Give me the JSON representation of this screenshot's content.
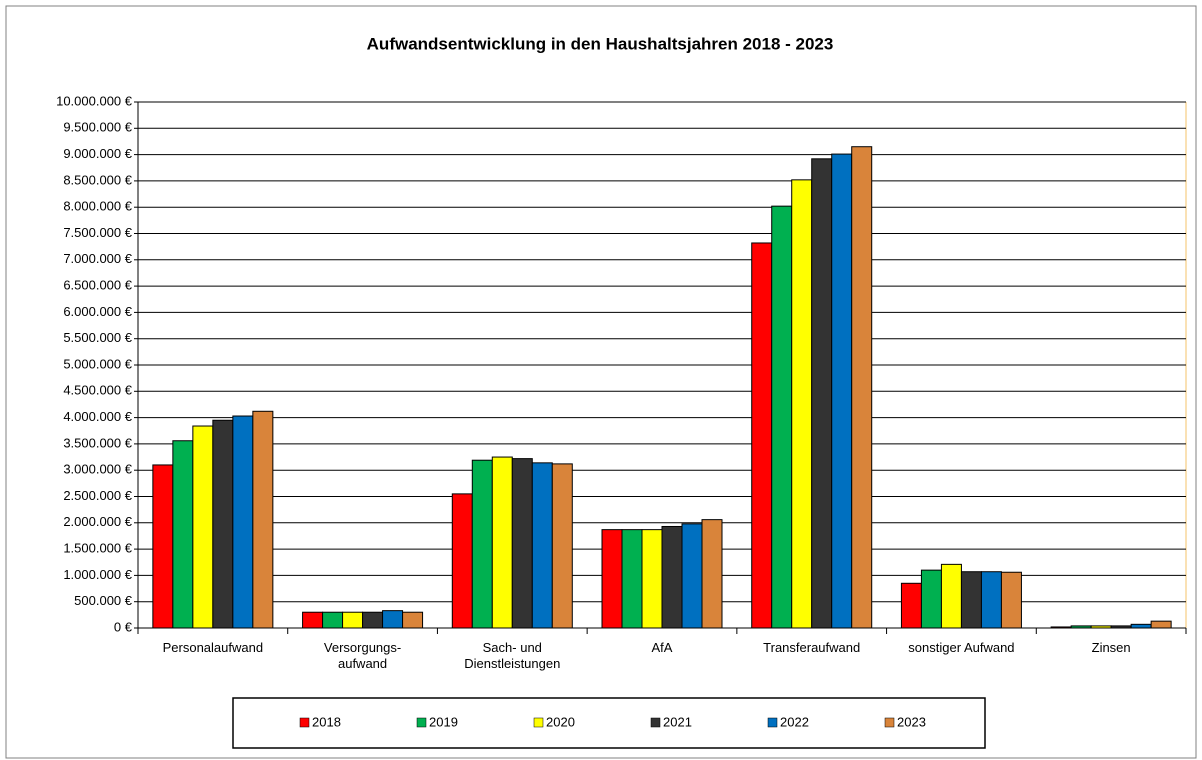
{
  "chart_data": {
    "type": "bar",
    "title": "Aufwandsentwicklung in den Haushaltsjahren 2018 - 2023",
    "categories": [
      "Personalaufwand",
      "Versorgungs-\naufwand",
      "Sach- und\nDienstleistungen",
      "AfA",
      "Transferaufwand",
      "sonstiger Aufwand",
      "Zinsen"
    ],
    "series": [
      {
        "name": "2018",
        "color": "#ff0000",
        "values": [
          3100000,
          300000,
          2550000,
          1870000,
          7320000,
          850000,
          20000
        ]
      },
      {
        "name": "2019",
        "color": "#00b050",
        "values": [
          3560000,
          300000,
          3190000,
          1870000,
          8020000,
          1100000,
          40000
        ]
      },
      {
        "name": "2020",
        "color": "#ffff00",
        "values": [
          3840000,
          300000,
          3250000,
          1870000,
          8520000,
          1210000,
          40000
        ]
      },
      {
        "name": "2021",
        "color": "#333333",
        "values": [
          3950000,
          300000,
          3220000,
          1930000,
          8920000,
          1070000,
          40000
        ]
      },
      {
        "name": "2022",
        "color": "#0070c0",
        "values": [
          4030000,
          330000,
          3140000,
          1980000,
          9010000,
          1070000,
          70000
        ]
      },
      {
        "name": "2023",
        "color": "#d9843a",
        "values": [
          4120000,
          300000,
          3120000,
          2060000,
          9150000,
          1060000,
          130000
        ]
      }
    ],
    "ylim": [
      0,
      10000000
    ],
    "yticks": [
      {
        "value": 0,
        "label": "0 €"
      },
      {
        "value": 500000,
        "label": "500.000 €"
      },
      {
        "value": 1000000,
        "label": "1.000.000 €"
      },
      {
        "value": 1500000,
        "label": "1.500.000 €"
      },
      {
        "value": 2000000,
        "label": "2.000.000 €"
      },
      {
        "value": 2500000,
        "label": "2.500.000 €"
      },
      {
        "value": 3000000,
        "label": "3.000.000 €"
      },
      {
        "value": 3500000,
        "label": "3.500.000 €"
      },
      {
        "value": 4000000,
        "label": "4.000.000 €"
      },
      {
        "value": 4500000,
        "label": "4.500.000 €"
      },
      {
        "value": 5000000,
        "label": "5.000.000 €"
      },
      {
        "value": 5500000,
        "label": "5.500.000 €"
      },
      {
        "value": 6000000,
        "label": "6.000.000 €"
      },
      {
        "value": 6500000,
        "label": "6.500.000 €"
      },
      {
        "value": 7000000,
        "label": "7.000.000 €"
      },
      {
        "value": 7500000,
        "label": "7.500.000 €"
      },
      {
        "value": 8000000,
        "label": "8.000.000 €"
      },
      {
        "value": 8500000,
        "label": "8.500.000 €"
      },
      {
        "value": 9000000,
        "label": "9.000.000 €"
      },
      {
        "value": 9500000,
        "label": "9.500.000 €"
      },
      {
        "value": 10000000,
        "label": "10.000.000 €"
      }
    ],
    "grid": true,
    "legend": "bottom"
  }
}
